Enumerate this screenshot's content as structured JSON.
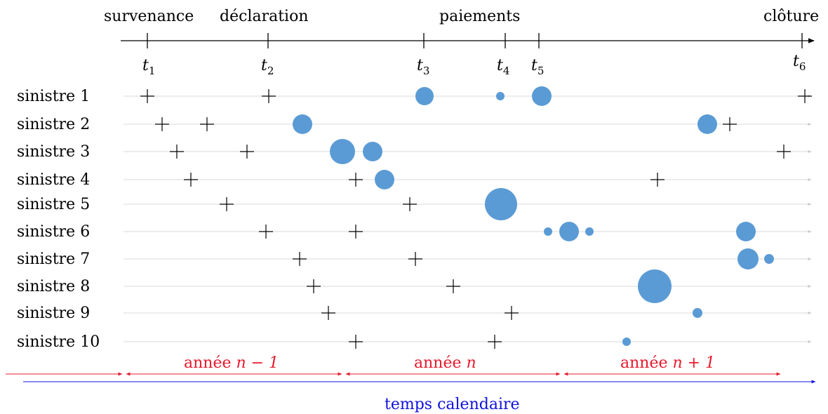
{
  "events": {
    "survenance": "survenance",
    "declaration": "déclaration",
    "paiements": "paiements",
    "cloture": "clôture"
  },
  "times": [
    {
      "base": "t",
      "sub": "1"
    },
    {
      "base": "t",
      "sub": "2"
    },
    {
      "base": "t",
      "sub": "3"
    },
    {
      "base": "t",
      "sub": "4"
    },
    {
      "base": "t",
      "sub": "5"
    },
    {
      "base": "t",
      "sub": "6"
    }
  ],
  "claims": [
    {
      "label": "sinistre 1"
    },
    {
      "label": "sinistre 2"
    },
    {
      "label": "sinistre 3"
    },
    {
      "label": "sinistre 4"
    },
    {
      "label": "sinistre 5"
    },
    {
      "label": "sinistre 6"
    },
    {
      "label": "sinistre 7"
    },
    {
      "label": "sinistre 8"
    },
    {
      "label": "sinistre 9"
    },
    {
      "label": "sinistre 10"
    }
  ],
  "years": {
    "prev": {
      "word": "année",
      "math": "n − 1"
    },
    "curr": {
      "word": "année",
      "math": "n"
    },
    "next": {
      "word": "année",
      "math": "n + 1"
    }
  },
  "calendar_label": "temps calendaire",
  "colors": {
    "dot": "#5b9bd5",
    "year_arrow": "#e8192c",
    "calendar_arrow": "#1010e0",
    "row_line": "#d9d9d9"
  }
}
